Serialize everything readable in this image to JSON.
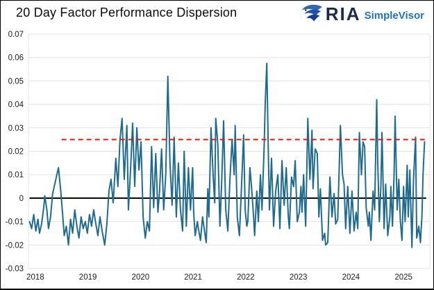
{
  "header": {
    "title": "20 Day Factor Performance Dispersion",
    "logo": {
      "brand": "RIA",
      "product": "SimpleVisor"
    }
  },
  "chart_data": {
    "type": "line",
    "title": "20 Day Factor Performance Dispersion",
    "xlabel": "",
    "ylabel": "",
    "grid": true,
    "grid_color": "#e3e3e3",
    "tick_label_color": "#1a1a1a",
    "xlim": [
      2017.87,
      2025.5
    ],
    "ylim": [
      -0.03,
      0.07
    ],
    "x_ticks": [
      2018,
      2019,
      2020,
      2021,
      2022,
      2023,
      2024,
      2025
    ],
    "y_ticks": [
      {
        "value": 0.07,
        "label": "0.07"
      },
      {
        "value": 0.06,
        "label": "0.06"
      },
      {
        "value": 0.05,
        "label": "0.05"
      },
      {
        "value": 0.04,
        "label": "0.04"
      },
      {
        "value": 0.03,
        "label": "0.03"
      },
      {
        "value": 0.02,
        "label": "0.02"
      },
      {
        "value": 0.01,
        "label": "0.01"
      },
      {
        "value": 0,
        "label": "0"
      },
      {
        "value": -0.01,
        "label": "-0.01"
      },
      {
        "value": -0.02,
        "label": "-0.02"
      },
      {
        "value": -0.03,
        "label": "-0.03"
      }
    ],
    "reference_lines": [
      {
        "name": "zero-line",
        "value": 0,
        "x_start": 2017.89,
        "x_end": 2025.43,
        "color": "#000000",
        "style": "solid",
        "width": 2,
        "layer": "below-series"
      },
      {
        "name": "threshold-line",
        "value": 0.025,
        "x_start": 2018.5,
        "x_end": 2025.43,
        "color": "#ee1111",
        "style": "dashed",
        "width": 2,
        "layer": "above-series"
      }
    ],
    "series": [
      {
        "name": "20 Day Factor Performance Dispersion",
        "color": "#1f6b8d",
        "width": 2,
        "value_scale": 0.001,
        "points": [
          [
            2017.89,
            -10
          ],
          [
            2017.93,
            -13
          ],
          [
            2017.97,
            -7
          ],
          [
            2018.01,
            -14
          ],
          [
            2018.05,
            -9
          ],
          [
            2018.08,
            -15
          ],
          [
            2018.12,
            -11
          ],
          [
            2018.16,
            -4
          ],
          [
            2018.18,
            1
          ],
          [
            2018.22,
            -5
          ],
          [
            2018.25,
            -13
          ],
          [
            2018.29,
            -8
          ],
          [
            2018.33,
            2
          ],
          [
            2018.37,
            6
          ],
          [
            2018.41,
            10
          ],
          [
            2018.44,
            13
          ],
          [
            2018.48,
            4
          ],
          [
            2018.52,
            -7
          ],
          [
            2018.55,
            -16
          ],
          [
            2018.59,
            -12
          ],
          [
            2018.63,
            -20
          ],
          [
            2018.67,
            -9
          ],
          [
            2018.71,
            -15
          ],
          [
            2018.75,
            -5
          ],
          [
            2018.79,
            -12
          ],
          [
            2018.83,
            -17
          ],
          [
            2018.87,
            -8
          ],
          [
            2018.91,
            -13
          ],
          [
            2018.95,
            -10
          ],
          [
            2018.99,
            -15
          ],
          [
            2019.03,
            -7
          ],
          [
            2019.07,
            -12
          ],
          [
            2019.11,
            -5
          ],
          [
            2019.15,
            -11
          ],
          [
            2019.19,
            -16
          ],
          [
            2019.23,
            -8
          ],
          [
            2019.27,
            -14
          ],
          [
            2019.32,
            -20
          ],
          [
            2019.36,
            -11
          ],
          [
            2019.4,
            3
          ],
          [
            2019.44,
            8
          ],
          [
            2019.48,
            -2
          ],
          [
            2019.53,
            17
          ],
          [
            2019.57,
            5
          ],
          [
            2019.61,
            25
          ],
          [
            2019.65,
            34
          ],
          [
            2019.69,
            8
          ],
          [
            2019.74,
            31
          ],
          [
            2019.77,
            -5
          ],
          [
            2019.81,
            12
          ],
          [
            2019.85,
            32
          ],
          [
            2019.89,
            5
          ],
          [
            2019.93,
            30
          ],
          [
            2019.97,
            12
          ],
          [
            2020.01,
            24
          ],
          [
            2020.05,
            -8
          ],
          [
            2020.09,
            -17
          ],
          [
            2020.13,
            -10
          ],
          [
            2020.17,
            -14
          ],
          [
            2020.21,
            22
          ],
          [
            2020.25,
            -4
          ],
          [
            2020.29,
            19
          ],
          [
            2020.33,
            -6
          ],
          [
            2020.36,
            2
          ],
          [
            2020.4,
            21
          ],
          [
            2020.44,
            -5
          ],
          [
            2020.48,
            10
          ],
          [
            2020.52,
            52
          ],
          [
            2020.56,
            15
          ],
          [
            2020.6,
            -3
          ],
          [
            2020.64,
            26
          ],
          [
            2020.68,
            -8
          ],
          [
            2020.72,
            15
          ],
          [
            2020.76,
            -5
          ],
          [
            2020.8,
            -14
          ],
          [
            2020.83,
            20
          ],
          [
            2020.87,
            -12
          ],
          [
            2020.91,
            13
          ],
          [
            2020.95,
            -5
          ],
          [
            2020.99,
            13
          ],
          [
            2021.01,
            -6
          ],
          [
            2021.04,
            -16
          ],
          [
            2021.08,
            -10
          ],
          [
            2021.1,
            -13
          ],
          [
            2021.14,
            -18
          ],
          [
            2021.18,
            -8
          ],
          [
            2021.21,
            -13
          ],
          [
            2021.25,
            -19
          ],
          [
            2021.28,
            4
          ],
          [
            2021.3,
            -8
          ],
          [
            2021.34,
            30
          ],
          [
            2021.38,
            10
          ],
          [
            2021.41,
            -2
          ],
          [
            2021.43,
            34
          ],
          [
            2021.47,
            23
          ],
          [
            2021.51,
            -12
          ],
          [
            2021.54,
            5
          ],
          [
            2021.58,
            33
          ],
          [
            2021.62,
            -5
          ],
          [
            2021.66,
            -14
          ],
          [
            2021.7,
            8
          ],
          [
            2021.74,
            25
          ],
          [
            2021.78,
            10
          ],
          [
            2021.8,
            31
          ],
          [
            2021.84,
            -8
          ],
          [
            2021.88,
            -16
          ],
          [
            2021.92,
            5
          ],
          [
            2021.96,
            27
          ],
          [
            2021.99,
            -5
          ],
          [
            2022.02,
            -12
          ],
          [
            2022.04,
            -10
          ],
          [
            2022.08,
            13
          ],
          [
            2022.11,
            5
          ],
          [
            2022.15,
            -8
          ],
          [
            2022.17,
            -16
          ],
          [
            2022.21,
            3
          ],
          [
            2022.24,
            -10
          ],
          [
            2022.28,
            10
          ],
          [
            2022.31,
            -5
          ],
          [
            2022.35,
            22
          ],
          [
            2022.37,
            40
          ],
          [
            2022.4,
            57.5
          ],
          [
            2022.43,
            20
          ],
          [
            2022.45,
            -5
          ],
          [
            2022.49,
            17
          ],
          [
            2022.53,
            -12
          ],
          [
            2022.57,
            3
          ],
          [
            2022.61,
            10
          ],
          [
            2022.65,
            -13
          ],
          [
            2022.69,
            16
          ],
          [
            2022.73,
            -3
          ],
          [
            2022.77,
            13
          ],
          [
            2022.81,
            -8
          ],
          [
            2022.83,
            -13
          ],
          [
            2022.87,
            9
          ],
          [
            2022.91,
            5
          ],
          [
            2022.94,
            16
          ],
          [
            2022.98,
            -10
          ],
          [
            2023.02,
            -6
          ],
          [
            2023.05,
            5
          ],
          [
            2023.07,
            -6
          ],
          [
            2023.1,
            10
          ],
          [
            2023.14,
            -12
          ],
          [
            2023.18,
            34
          ],
          [
            2023.22,
            8
          ],
          [
            2023.26,
            29
          ],
          [
            2023.28,
            4
          ],
          [
            2023.32,
            21
          ],
          [
            2023.36,
            19
          ],
          [
            2023.39,
            -8
          ],
          [
            2023.42,
            4
          ],
          [
            2023.46,
            -18
          ],
          [
            2023.5,
            -15
          ],
          [
            2023.52,
            -20
          ],
          [
            2023.56,
            -19
          ],
          [
            2023.6,
            9
          ],
          [
            2023.64,
            -8
          ],
          [
            2023.68,
            2
          ],
          [
            2023.71,
            -11
          ],
          [
            2023.75,
            -9
          ],
          [
            2023.8,
            31
          ],
          [
            2023.84,
            10
          ],
          [
            2023.87,
            6
          ],
          [
            2023.9,
            -13
          ],
          [
            2023.94,
            5
          ],
          [
            2023.98,
            -15
          ],
          [
            2024.02,
            3
          ],
          [
            2024.06,
            -14
          ],
          [
            2024.1,
            -6
          ],
          [
            2024.13,
            -13
          ],
          [
            2024.16,
            28
          ],
          [
            2024.2,
            10
          ],
          [
            2024.23,
            24
          ],
          [
            2024.26,
            22
          ],
          [
            2024.29,
            -4
          ],
          [
            2024.33,
            -12
          ],
          [
            2024.35,
            -6
          ],
          [
            2024.38,
            -18
          ],
          [
            2024.42,
            3
          ],
          [
            2024.45,
            -5
          ],
          [
            2024.49,
            42
          ],
          [
            2024.51,
            15
          ],
          [
            2024.54,
            -10
          ],
          [
            2024.57,
            5
          ],
          [
            2024.59,
            28
          ],
          [
            2024.63,
            -13
          ],
          [
            2024.66,
            6
          ],
          [
            2024.7,
            -16
          ],
          [
            2024.74,
            -8
          ],
          [
            2024.76,
            5
          ],
          [
            2024.79,
            -12
          ],
          [
            2024.82,
            10
          ],
          [
            2024.84,
            35
          ],
          [
            2024.88,
            -5
          ],
          [
            2024.91,
            8
          ],
          [
            2024.94,
            -10
          ],
          [
            2024.97,
            -18
          ],
          [
            2025.0,
            5
          ],
          [
            2025.03,
            -10
          ],
          [
            2025.07,
            14
          ],
          [
            2025.09,
            -8
          ],
          [
            2025.12,
            12
          ],
          [
            2025.16,
            -21
          ],
          [
            2025.19,
            8
          ],
          [
            2025.23,
            26
          ],
          [
            2025.25,
            -17
          ],
          [
            2025.29,
            -12
          ],
          [
            2025.32,
            -19
          ],
          [
            2025.35,
            -8
          ],
          [
            2025.37,
            10
          ],
          [
            2025.4,
            24
          ]
        ]
      }
    ]
  },
  "colors": {
    "series": "#1f6b8d",
    "threshold_red": "#ee1111",
    "brand_navy": "#1c2b4d",
    "brand_blue": "#1a73c9"
  }
}
